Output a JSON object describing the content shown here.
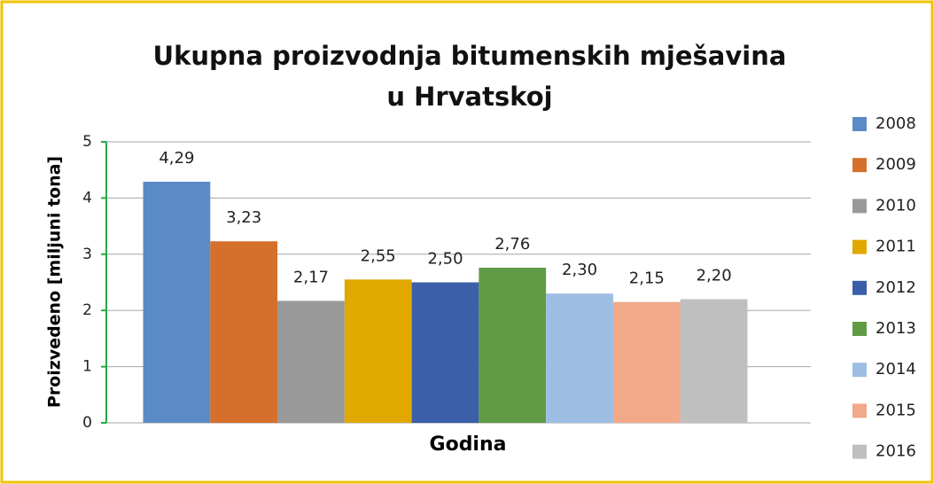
{
  "chart_data": {
    "type": "bar",
    "title": "Ukupna proizvodnja bitumenskih mješavina u Hrvatskoj",
    "x_label": "Godina",
    "y_label": "Proizvedeno [miljuni tona]",
    "categories": [
      null
    ],
    "series": [
      {
        "name": "2008",
        "color": "#5a8bc5",
        "values": [
          4.29
        ],
        "value_labels": [
          "4,29"
        ]
      },
      {
        "name": "2009",
        "color": "#d4702c",
        "values": [
          3.23
        ],
        "value_labels": [
          "3,23"
        ]
      },
      {
        "name": "2010",
        "color": "#999999",
        "values": [
          2.17
        ],
        "value_labels": [
          "2,17"
        ]
      },
      {
        "name": "2011",
        "color": "#e0a800",
        "values": [
          2.55
        ],
        "value_labels": [
          "2,55"
        ]
      },
      {
        "name": "2012",
        "color": "#3b5fa9",
        "values": [
          2.5
        ],
        "value_labels": [
          "2,50"
        ]
      },
      {
        "name": "2013",
        "color": "#609b45",
        "values": [
          2.76
        ],
        "value_labels": [
          "2,76"
        ]
      },
      {
        "name": "2014",
        "color": "#9ebde3",
        "values": [
          2.3
        ],
        "value_labels": [
          "2,30"
        ]
      },
      {
        "name": "2015",
        "color": "#f1a98a",
        "values": [
          2.15
        ],
        "value_labels": [
          "2,15"
        ]
      },
      {
        "name": "2016",
        "color": "#bfbfbf",
        "values": [
          2.2
        ],
        "value_labels": [
          "2,20"
        ]
      }
    ],
    "ylim": [
      0,
      5
    ],
    "yticks": [
      0,
      1,
      2,
      3,
      4,
      5
    ],
    "grid": true,
    "legend": "right"
  }
}
